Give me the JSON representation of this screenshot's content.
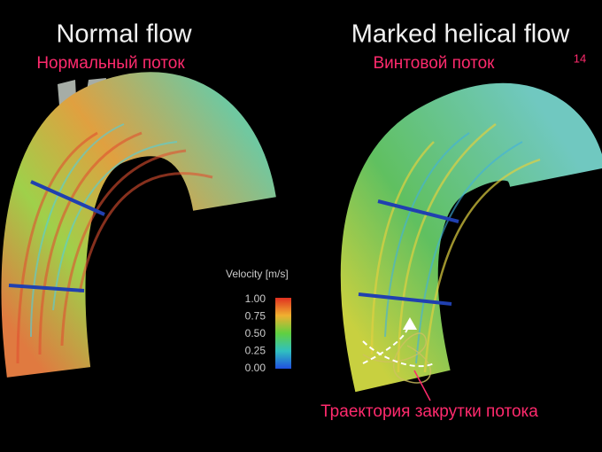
{
  "left": {
    "title": "Normal flow",
    "subtitle": "Нормальный поток"
  },
  "right": {
    "title": "Marked helical flow",
    "subtitle": "Винтовой поток"
  },
  "page_number": "14",
  "legend": {
    "title": "Velocity [m/s]",
    "labels": [
      "1.00",
      "0.75",
      "0.50",
      "0.25",
      "0.00"
    ]
  },
  "annotation": "Траектория закрутки потока"
}
